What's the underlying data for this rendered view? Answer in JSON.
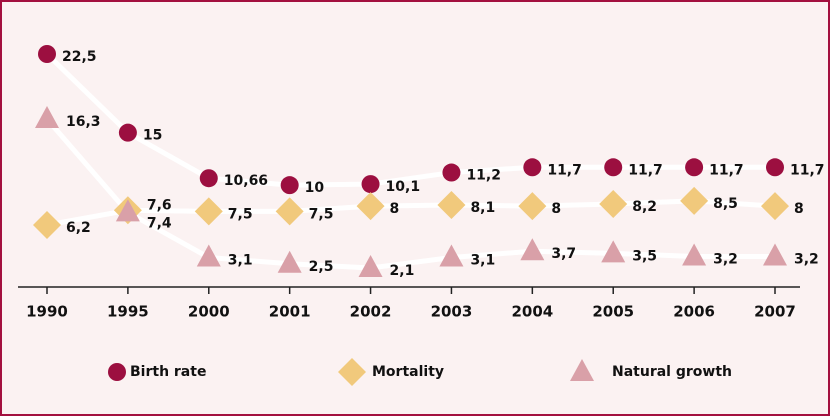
{
  "chart_data": {
    "type": "line",
    "categories": [
      "1990",
      "1995",
      "2000",
      "2001",
      "2002",
      "2003",
      "2004",
      "2005",
      "2006",
      "2007"
    ],
    "series": [
      {
        "name": "Birth rate",
        "color": "#9c0f40",
        "marker": "circle",
        "values": [
          22.5,
          15,
          10.66,
          10,
          10.1,
          11.2,
          11.7,
          11.7,
          11.7,
          11.7
        ],
        "value_labels": [
          "22,5",
          "15",
          "10,66",
          "10",
          "10,1",
          "11,2",
          "11,7",
          "11,7",
          "11,7",
          "11,7"
        ]
      },
      {
        "name": "Mortality",
        "color": "#f1c97c",
        "marker": "diamond",
        "values": [
          6.2,
          7.6,
          7.5,
          7.5,
          8,
          8.1,
          8,
          8.2,
          8.5,
          8
        ],
        "value_labels": [
          "6,2",
          "7,6",
          "7,5",
          "7,5",
          "8",
          "8,1",
          "8",
          "8,2",
          "8,5",
          "8"
        ]
      },
      {
        "name": "Natural growth",
        "color": "#d9a0a8",
        "marker": "triangle",
        "values": [
          16.3,
          7.4,
          3.1,
          2.5,
          2.1,
          3.1,
          3.7,
          3.5,
          3.2,
          3.2
        ],
        "value_labels": [
          "16,3",
          "7,4",
          "3,1",
          "2,5",
          "2,1",
          "3,1",
          "3,7",
          "3,5",
          "3,2",
          "3,2"
        ]
      }
    ]
  }
}
